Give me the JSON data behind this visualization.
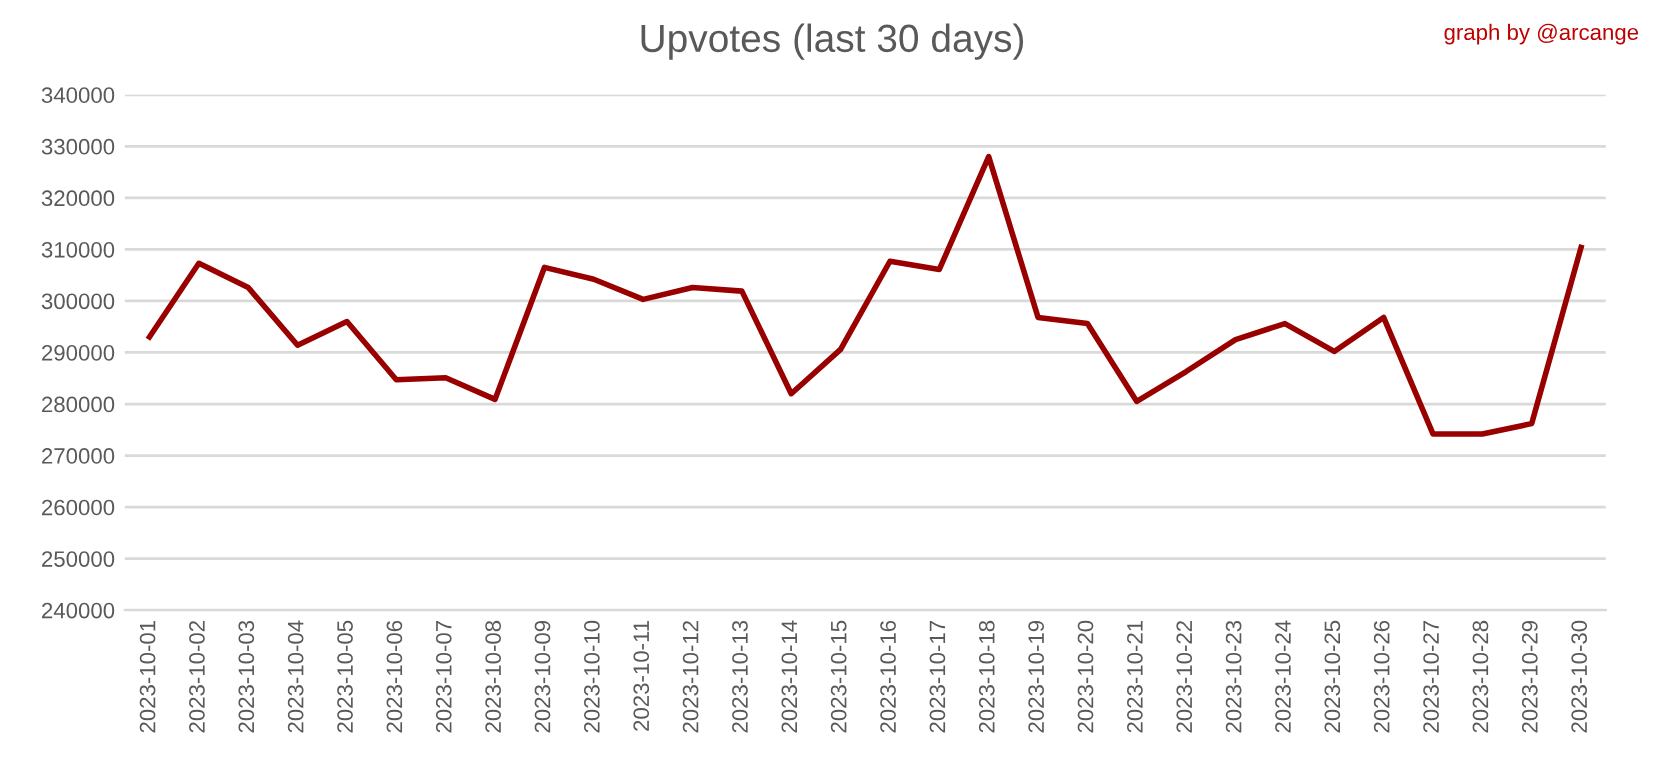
{
  "chart_data": {
    "type": "line",
    "title": "Upvotes (last 30 days)",
    "annotations": [
      "graph by @arcange"
    ],
    "categories": [
      "2023-10-01",
      "2023-10-02",
      "2023-10-03",
      "2023-10-04",
      "2023-10-05",
      "2023-10-06",
      "2023-10-07",
      "2023-10-08",
      "2023-10-09",
      "2023-10-10",
      "2023-10-11",
      "2023-10-12",
      "2023-10-13",
      "2023-10-14",
      "2023-10-15",
      "2023-10-16",
      "2023-10-17",
      "2023-10-18",
      "2023-10-19",
      "2023-10-20",
      "2023-10-21",
      "2023-10-22",
      "2023-10-23",
      "2023-10-24",
      "2023-10-25",
      "2023-10-26",
      "2023-10-27",
      "2023-10-28",
      "2023-10-29",
      "2023-10-30"
    ],
    "series": [
      {
        "color": "#990000",
        "values": [
          293000,
          307300,
          302600,
          291400,
          296000,
          284700,
          285100,
          280900,
          306500,
          304200,
          300300,
          302600,
          301900,
          282000,
          290600,
          307700,
          306100,
          328000,
          296800,
          295600,
          280500,
          286300,
          292500,
          295600,
          290200,
          296800,
          274200,
          274200,
          276200,
          310400
        ]
      }
    ],
    "ylim": [
      240000,
      340000
    ],
    "yticks": [
      240000,
      250000,
      260000,
      270000,
      280000,
      290000,
      300000,
      310000,
      320000,
      330000,
      340000
    ],
    "grid": "y",
    "legend": false,
    "marker": "none",
    "line_style": "solid"
  }
}
